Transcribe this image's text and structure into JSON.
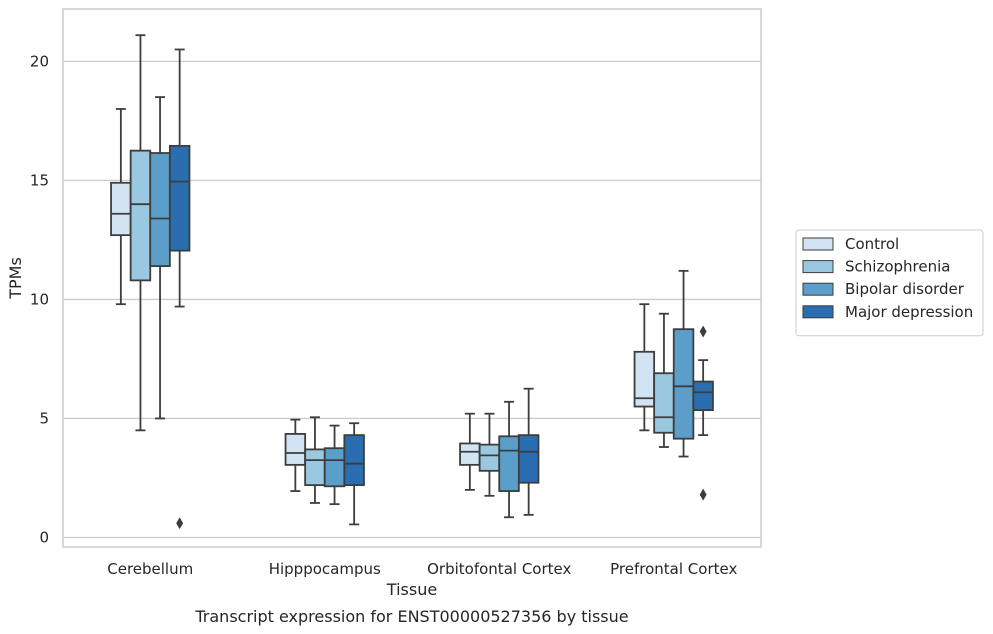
{
  "caption": "Transcript expression for ENST00000527356 by tissue",
  "chart_data": {
    "type": "boxplot",
    "title": "",
    "xlabel": "Tissue",
    "ylabel": "TPMs",
    "ylim": [
      -0.4,
      22.2
    ],
    "yticks": [
      0,
      5,
      10,
      15,
      20
    ],
    "grid": "horizontal",
    "legend_position": "right",
    "categories": [
      "Cerebellum",
      "Hipppocampus",
      "Orbitofontal Cortex",
      "Prefrontal Cortex"
    ],
    "series": [
      {
        "name": "Control",
        "color": "#d2e3f3",
        "boxes": [
          {
            "whislo": 9.8,
            "q1": 12.7,
            "med": 13.6,
            "q3": 14.9,
            "whishi": 18.0,
            "fliers": []
          },
          {
            "whislo": 1.95,
            "q1": 3.05,
            "med": 3.55,
            "q3": 4.35,
            "whishi": 4.95,
            "fliers": []
          },
          {
            "whislo": 2.0,
            "q1": 3.05,
            "med": 3.6,
            "q3": 3.95,
            "whishi": 5.2,
            "fliers": []
          },
          {
            "whislo": 4.5,
            "q1": 5.5,
            "med": 5.85,
            "q3": 7.8,
            "whishi": 9.8,
            "fliers": []
          }
        ]
      },
      {
        "name": "Schizophrenia",
        "color": "#9ac8e0",
        "boxes": [
          {
            "whislo": 4.5,
            "q1": 10.8,
            "med": 14.0,
            "q3": 16.25,
            "whishi": 21.1,
            "fliers": []
          },
          {
            "whislo": 1.45,
            "q1": 2.2,
            "med": 3.25,
            "q3": 3.7,
            "whishi": 5.05,
            "fliers": []
          },
          {
            "whislo": 1.75,
            "q1": 2.8,
            "med": 3.45,
            "q3": 3.9,
            "whishi": 5.2,
            "fliers": []
          },
          {
            "whislo": 3.8,
            "q1": 4.4,
            "med": 5.05,
            "q3": 6.9,
            "whishi": 9.4,
            "fliers": []
          }
        ]
      },
      {
        "name": "Bipolar disorder",
        "color": "#5a9ec9",
        "boxes": [
          {
            "whislo": 5.0,
            "q1": 11.4,
            "med": 13.4,
            "q3": 16.15,
            "whishi": 18.5,
            "fliers": []
          },
          {
            "whislo": 1.4,
            "q1": 2.15,
            "med": 3.25,
            "q3": 3.75,
            "whishi": 4.7,
            "fliers": []
          },
          {
            "whislo": 0.85,
            "q1": 1.95,
            "med": 3.65,
            "q3": 4.25,
            "whishi": 5.7,
            "fliers": []
          },
          {
            "whislo": 3.4,
            "q1": 4.15,
            "med": 6.35,
            "q3": 8.75,
            "whishi": 11.2,
            "fliers": []
          }
        ]
      },
      {
        "name": "Major depression",
        "color": "#2a6db0",
        "boxes": [
          {
            "whislo": 9.7,
            "q1": 12.05,
            "med": 14.95,
            "q3": 16.45,
            "whishi": 20.5,
            "fliers": [
              0.6
            ]
          },
          {
            "whislo": 0.55,
            "q1": 2.2,
            "med": 3.1,
            "q3": 4.3,
            "whishi": 4.8,
            "fliers": []
          },
          {
            "whislo": 0.95,
            "q1": 2.3,
            "med": 3.6,
            "q3": 4.3,
            "whishi": 6.25,
            "fliers": []
          },
          {
            "whislo": 4.3,
            "q1": 5.35,
            "med": 6.1,
            "q3": 6.55,
            "whishi": 7.45,
            "fliers": [
              8.65,
              1.8
            ]
          }
        ]
      }
    ]
  }
}
